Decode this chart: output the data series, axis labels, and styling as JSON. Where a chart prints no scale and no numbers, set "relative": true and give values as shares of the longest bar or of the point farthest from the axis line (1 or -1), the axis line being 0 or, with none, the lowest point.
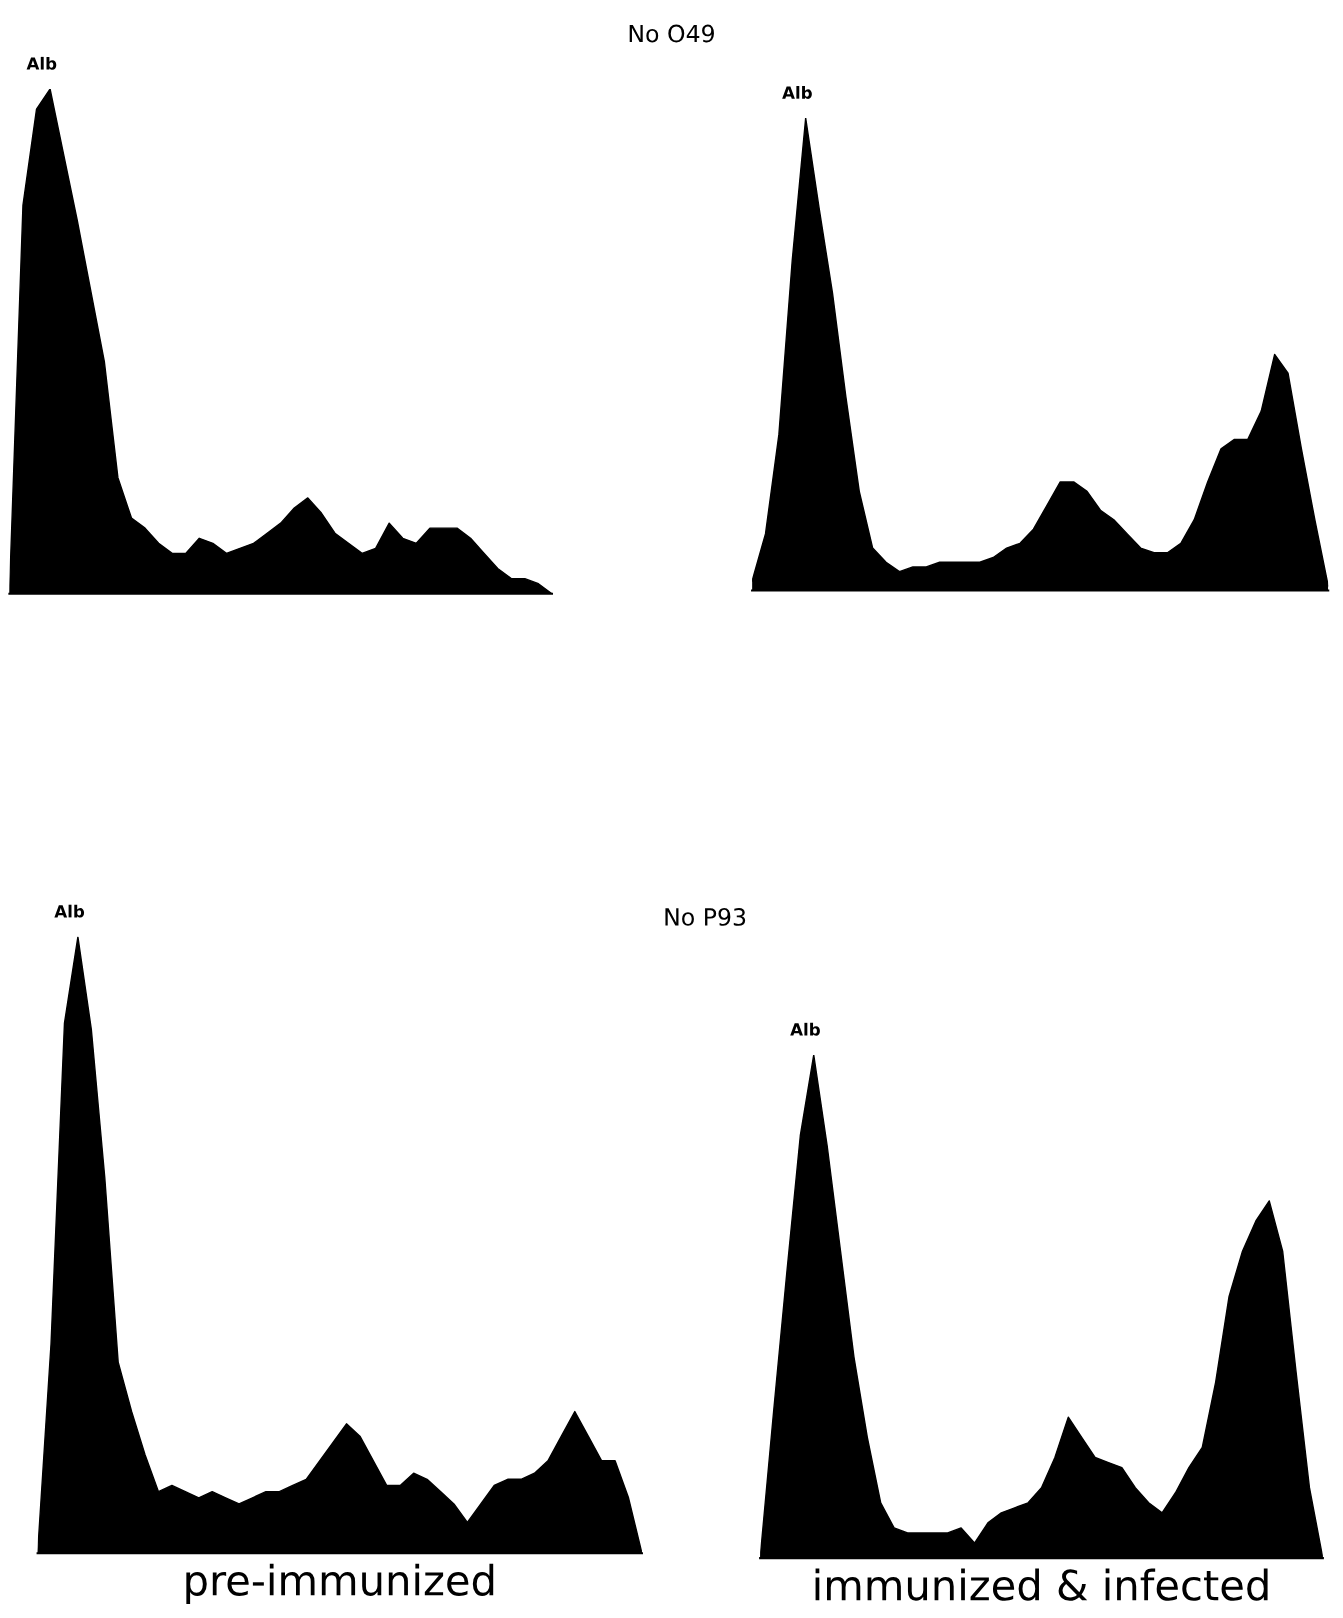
{
  "chart_data": [
    {
      "type": "area",
      "relative": true,
      "annotations": [
        "Alb"
      ],
      "categories": [
        null,
        null,
        null,
        null,
        null,
        null,
        null,
        null,
        null,
        null,
        null,
        null,
        null,
        null,
        null,
        null,
        null,
        null,
        null,
        null,
        null,
        null,
        null,
        null,
        null,
        null,
        null,
        null,
        null,
        null,
        null,
        null,
        null,
        null,
        null,
        null,
        null,
        null,
        null,
        null,
        null
      ],
      "series": [
        {
          "color": "#000000",
          "values": [
            0,
            0.77,
            0.96,
            1,
            0.87,
            0.74,
            0.6,
            0.46,
            0.23,
            0.15,
            0.13,
            0.1,
            0.08,
            0.08,
            0.11,
            0.1,
            0.08,
            0.09,
            0.1,
            0.12,
            0.14,
            0.17,
            0.19,
            0.16,
            0.12,
            0.1,
            0.08,
            0.09,
            0.14,
            0.11,
            0.1,
            0.13,
            0.13,
            0.13,
            0.11,
            0.08,
            0.05,
            0.03,
            0.03,
            0.02,
            0
          ]
        }
      ]
    },
    {
      "type": "area",
      "relative": true,
      "title": "No O49",
      "annotations": [
        "Alb"
      ],
      "categories": [
        null,
        null,
        null,
        null,
        null,
        null,
        null,
        null,
        null,
        null,
        null,
        null,
        null,
        null,
        null,
        null,
        null,
        null,
        null,
        null,
        null,
        null,
        null,
        null,
        null,
        null,
        null,
        null,
        null,
        null,
        null,
        null,
        null,
        null,
        null,
        null,
        null,
        null,
        null,
        null,
        null,
        null,
        null,
        null
      ],
      "series": [
        {
          "color": "#000000",
          "values": [
            0.02,
            0.12,
            0.33,
            0.7,
            1,
            0.81,
            0.63,
            0.41,
            0.21,
            0.09,
            0.06,
            0.04,
            0.05,
            0.05,
            0.06,
            0.06,
            0.06,
            0.06,
            0.07,
            0.09,
            0.1,
            0.13,
            0.18,
            0.23,
            0.23,
            0.21,
            0.17,
            0.15,
            0.12,
            0.09,
            0.08,
            0.08,
            0.1,
            0.15,
            0.23,
            0.3,
            0.32,
            0.32,
            0.38,
            0.5,
            0.46,
            0.3,
            0.15,
            0.01
          ]
        }
      ]
    },
    {
      "type": "area",
      "relative": true,
      "xlabel": "pre-immunized",
      "annotations": [
        "Alb"
      ],
      "categories": [
        null,
        null,
        null,
        null,
        null,
        null,
        null,
        null,
        null,
        null,
        null,
        null,
        null,
        null,
        null,
        null,
        null,
        null,
        null,
        null,
        null,
        null,
        null,
        null,
        null,
        null,
        null,
        null,
        null,
        null,
        null,
        null,
        null,
        null,
        null,
        null,
        null,
        null,
        null,
        null,
        null,
        null,
        null,
        null,
        null,
        null
      ],
      "series": [
        {
          "color": "#000000",
          "values": [
            0,
            0.34,
            0.86,
            1,
            0.85,
            0.61,
            0.31,
            0.23,
            0.16,
            0.1,
            0.11,
            0.1,
            0.09,
            0.1,
            0.09,
            0.08,
            0.09,
            0.1,
            0.1,
            0.11,
            0.12,
            0.15,
            0.18,
            0.21,
            0.19,
            0.15,
            0.11,
            0.11,
            0.13,
            0.12,
            0.1,
            0.08,
            0.05,
            0.08,
            0.11,
            0.12,
            0.12,
            0.13,
            0.15,
            0.19,
            0.23,
            0.19,
            0.15,
            0.15,
            0.09,
            0
          ]
        }
      ]
    },
    {
      "type": "area",
      "relative": true,
      "title": "No P93",
      "xlabel": "immunized & infected",
      "annotations": [
        "Alb"
      ],
      "categories": [
        null,
        null,
        null,
        null,
        null,
        null,
        null,
        null,
        null,
        null,
        null,
        null,
        null,
        null,
        null,
        null,
        null,
        null,
        null,
        null,
        null,
        null,
        null,
        null,
        null,
        null,
        null,
        null,
        null,
        null,
        null,
        null,
        null,
        null,
        null,
        null,
        null,
        null,
        null,
        null,
        null,
        null,
        null
      ],
      "series": [
        {
          "color": "#000000",
          "values": [
            0,
            0.29,
            0.57,
            0.84,
            1,
            0.82,
            0.61,
            0.4,
            0.24,
            0.11,
            0.06,
            0.05,
            0.05,
            0.05,
            0.05,
            0.06,
            0.03,
            0.07,
            0.09,
            0.1,
            0.11,
            0.14,
            0.2,
            0.28,
            0.24,
            0.2,
            0.19,
            0.18,
            0.14,
            0.11,
            0.09,
            0.13,
            0.18,
            0.22,
            0.35,
            0.52,
            0.61,
            0.67,
            0.71,
            0.61,
            0.37,
            0.14,
            0
          ]
        }
      ]
    }
  ]
}
